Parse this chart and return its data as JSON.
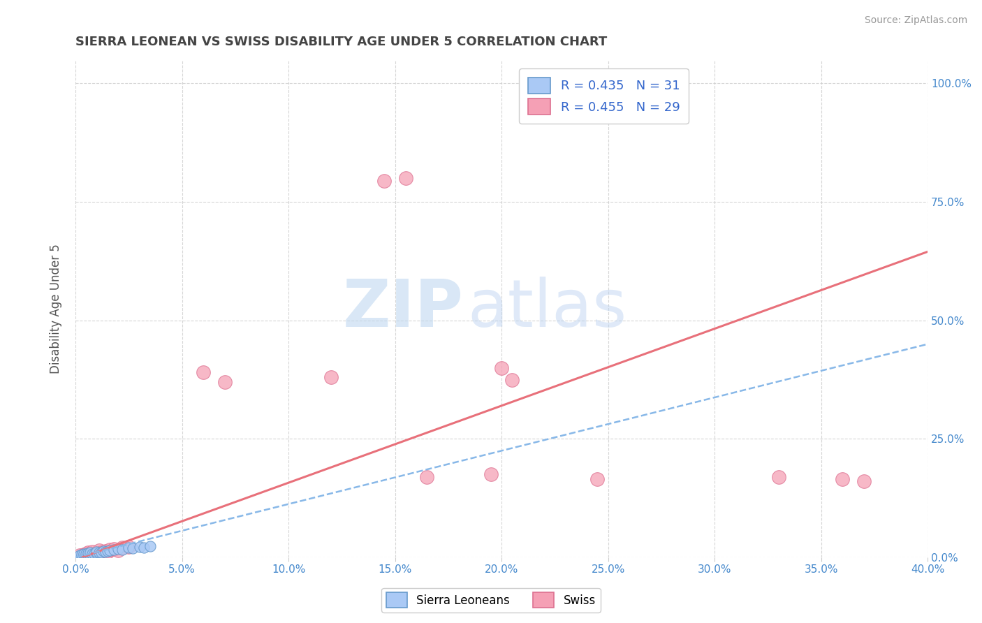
{
  "title": "SIERRA LEONEAN VS SWISS DISABILITY AGE UNDER 5 CORRELATION CHART",
  "source": "Source: ZipAtlas.com",
  "ylabel": "Disability Age Under 5",
  "legend_label_1": "Sierra Leoneans",
  "legend_label_2": "Swiss",
  "r1": 0.435,
  "n1": 31,
  "r2": 0.455,
  "n2": 29,
  "color_sl": "#aac9f5",
  "color_sw": "#f5a0b5",
  "color_sl_edge": "#6699cc",
  "color_sw_edge": "#dd7090",
  "color_sl_line": "#88b8e8",
  "color_sw_line": "#e8707a",
  "xmin": 0.0,
  "xmax": 0.4,
  "ymin": 0.0,
  "ymax": 1.05,
  "xtick_labels": [
    "0.0%",
    "5.0%",
    "10.0%",
    "15.0%",
    "20.0%",
    "25.0%",
    "30.0%",
    "35.0%",
    "40.0%"
  ],
  "ytick_labels": [
    "0.0%",
    "25.0%",
    "50.0%",
    "75.0%",
    "100.0%"
  ],
  "ytick_vals": [
    0.0,
    0.25,
    0.5,
    0.75,
    1.0
  ],
  "xtick_vals": [
    0.0,
    0.05,
    0.1,
    0.15,
    0.2,
    0.25,
    0.3,
    0.35,
    0.4
  ],
  "sl_x": [
    0.001,
    0.002,
    0.002,
    0.003,
    0.003,
    0.004,
    0.004,
    0.005,
    0.005,
    0.006,
    0.006,
    0.007,
    0.007,
    0.008,
    0.009,
    0.01,
    0.01,
    0.011,
    0.012,
    0.013,
    0.014,
    0.015,
    0.016,
    0.018,
    0.02,
    0.022,
    0.025,
    0.027,
    0.03,
    0.032,
    0.035
  ],
  "sl_y": [
    0.001,
    0.003,
    0.005,
    0.002,
    0.006,
    0.004,
    0.007,
    0.003,
    0.008,
    0.005,
    0.009,
    0.006,
    0.01,
    0.007,
    0.008,
    0.009,
    0.012,
    0.01,
    0.011,
    0.013,
    0.012,
    0.014,
    0.015,
    0.016,
    0.018,
    0.017,
    0.02,
    0.019,
    0.022,
    0.021,
    0.024
  ],
  "sw_x": [
    0.002,
    0.004,
    0.005,
    0.006,
    0.007,
    0.008,
    0.01,
    0.011,
    0.012,
    0.014,
    0.015,
    0.016,
    0.018,
    0.02,
    0.022,
    0.025,
    0.06,
    0.07,
    0.12,
    0.145,
    0.155,
    0.165,
    0.195,
    0.2,
    0.205,
    0.245,
    0.33,
    0.36,
    0.37
  ],
  "sw_y": [
    0.004,
    0.006,
    0.008,
    0.01,
    0.005,
    0.012,
    0.008,
    0.015,
    0.01,
    0.014,
    0.012,
    0.016,
    0.018,
    0.015,
    0.02,
    0.022,
    0.39,
    0.37,
    0.38,
    0.795,
    0.8,
    0.17,
    0.175,
    0.4,
    0.375,
    0.165,
    0.17,
    0.165,
    0.16
  ],
  "watermark_zip": "ZIP",
  "watermark_atlas": "atlas",
  "background_color": "#ffffff",
  "grid_color": "#cccccc",
  "tick_color": "#4488cc",
  "title_color": "#444444"
}
